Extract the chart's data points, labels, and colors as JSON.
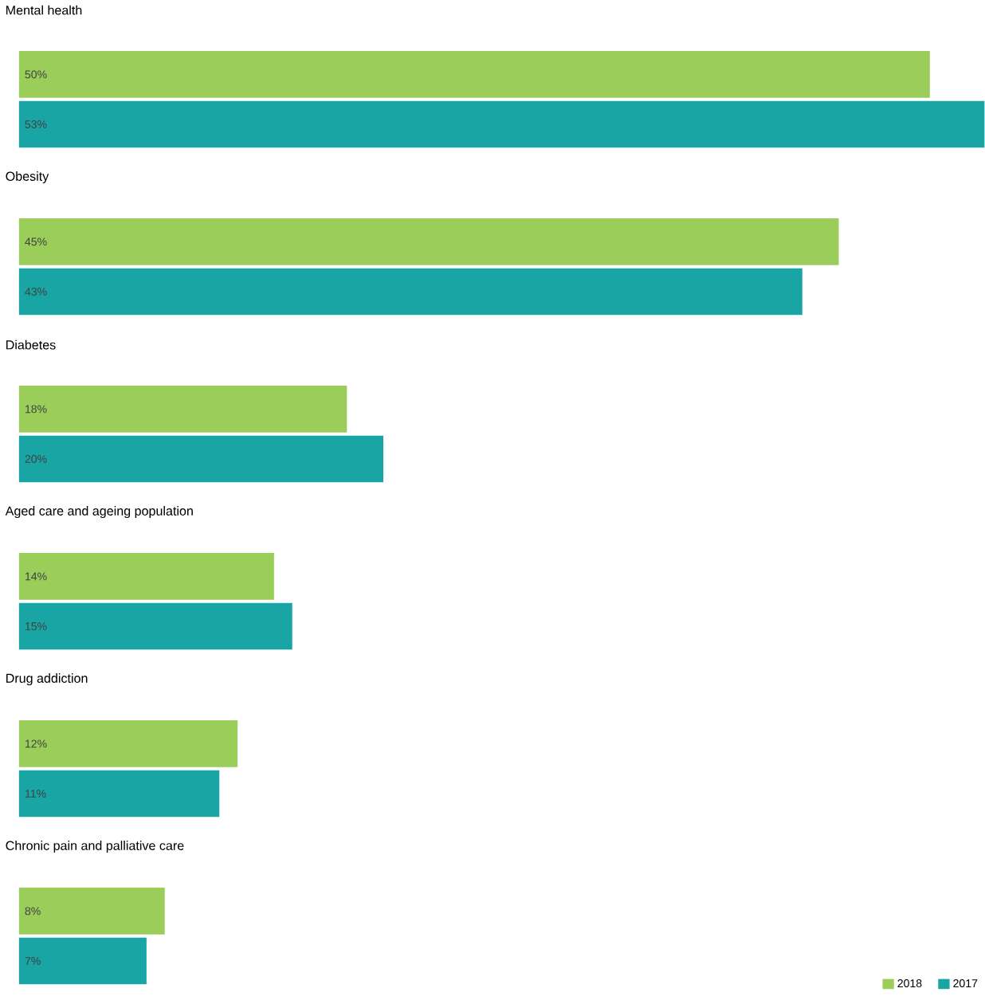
{
  "chart_data": {
    "type": "bar",
    "orientation": "horizontal",
    "categories": [
      "Mental health",
      "Obesity",
      "Diabetes",
      "Aged care and ageing population",
      "Drug addiction",
      "Chronic pain and palliative care"
    ],
    "series": [
      {
        "name": "2018",
        "color": "#9acd5a",
        "values": [
          50,
          45,
          18,
          14,
          12,
          8
        ],
        "value_labels": [
          "50%",
          "45%",
          "18%",
          "14%",
          "12%",
          "8%"
        ]
      },
      {
        "name": "2017",
        "color": "#1aa5a5",
        "values": [
          53,
          43,
          20,
          15,
          11,
          7
        ],
        "value_labels": [
          "53%",
          "43%",
          "20%",
          "15%",
          "11%",
          "7%"
        ]
      }
    ],
    "legend": "bottom right"
  }
}
